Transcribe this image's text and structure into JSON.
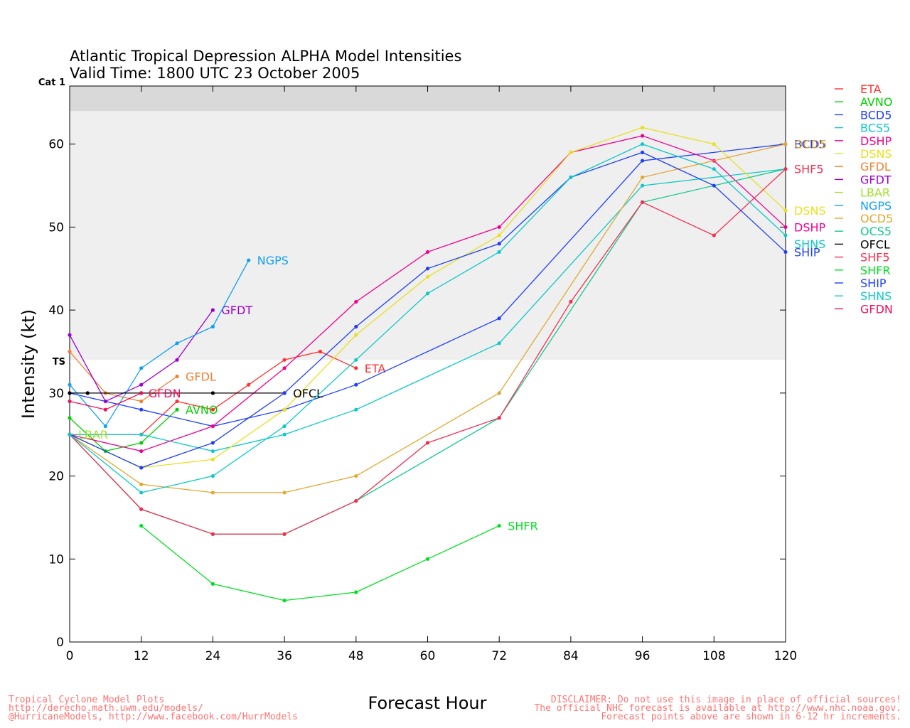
{
  "title": "Atlantic Tropical Depression ALPHA Model Intensities",
  "subtitle": "Valid Time: 1800 UTC 23 October 2005",
  "footer_left": [
    "Tropical Cyclone Model Plots",
    "http://derecho.math.uwm.edu/models/",
    "@HurricaneModels, http://www.facebook.com/HurrModels"
  ],
  "footer_right": [
    "DISCLAIMER: Do not use this image in place of official sources!",
    "The official NHC forecast is available at http://www.nhc.noaa.gov.",
    "Forecast points above are shown in 6-12 hr increments."
  ],
  "chart_data": {
    "type": "line",
    "xlabel": "Forecast Hour",
    "ylabel": "Intensity (kt)",
    "xlim": [
      0,
      120
    ],
    "ylim": [
      0,
      67
    ],
    "xticks": [
      0,
      12,
      24,
      36,
      48,
      60,
      72,
      84,
      96,
      108,
      120
    ],
    "yticks": [
      0,
      10,
      20,
      30,
      40,
      50,
      60
    ],
    "bands": [
      {
        "name": "TS",
        "from": 34,
        "to": 64,
        "color": "#efefef"
      },
      {
        "name": "Cat 1",
        "from": 64,
        "to": 67,
        "color": "#d9d9d9"
      }
    ],
    "series": [
      {
        "name": "ETA",
        "color": "#ff3030",
        "x": [
          0,
          12,
          18,
          24,
          30,
          36,
          42,
          48
        ],
        "y": [
          25,
          25,
          29,
          28,
          31,
          34,
          35,
          33
        ],
        "label": "ETA"
      },
      {
        "name": "AVNO",
        "color": "#00d000",
        "x": [
          0,
          6,
          12,
          18
        ],
        "y": [
          27,
          23,
          24,
          28
        ],
        "label": "AVNO"
      },
      {
        "name": "BCD5",
        "color": "#2040ff",
        "x": [
          0,
          12,
          24,
          36,
          48,
          72,
          96,
          120
        ],
        "y": [
          30,
          28,
          26,
          28,
          31,
          39,
          58,
          60
        ],
        "label": "BCD5"
      },
      {
        "name": "BCS5",
        "color": "#10c8c8",
        "x": [
          0,
          12,
          24,
          36,
          48,
          72,
          96,
          120
        ],
        "y": [
          25,
          25,
          23,
          25,
          28,
          36,
          55,
          57
        ],
        "label": "BCS5"
      },
      {
        "name": "DSHP",
        "color": "#f00090",
        "x": [
          0,
          12,
          24,
          36,
          48,
          60,
          72,
          84,
          96,
          108,
          120
        ],
        "y": [
          25,
          23,
          26,
          33,
          41,
          47,
          50,
          59,
          61,
          58,
          50
        ],
        "label": "DSHP"
      },
      {
        "name": "DSNS",
        "color": "#e8e020",
        "x": [
          0,
          12,
          24,
          36,
          48,
          60,
          72,
          84,
          96,
          108,
          120
        ],
        "y": [
          25,
          21,
          22,
          28,
          37,
          44,
          49,
          59,
          62,
          60,
          52
        ],
        "label": "DSNS"
      },
      {
        "name": "GFDL",
        "color": "#f08030",
        "x": [
          0,
          6,
          12,
          18
        ],
        "y": [
          35,
          30,
          29,
          32
        ],
        "label": "GFDL"
      },
      {
        "name": "GFDT",
        "color": "#a000d0",
        "x": [
          0,
          6,
          12,
          18,
          24
        ],
        "y": [
          37,
          29,
          31,
          34,
          40
        ],
        "label": "GFDT"
      },
      {
        "name": "LBAR",
        "color": "#a0e030",
        "x": [
          0
        ],
        "y": [
          25
        ],
        "label": "LBAR"
      },
      {
        "name": "NGPS",
        "color": "#10a0f0",
        "x": [
          0,
          6,
          12,
          18,
          24,
          30
        ],
        "y": [
          31,
          26,
          33,
          36,
          38,
          46
        ],
        "label": "NGPS"
      },
      {
        "name": "OCD5",
        "color": "#e0a830",
        "x": [
          0,
          12,
          24,
          36,
          48,
          72,
          96,
          120
        ],
        "y": [
          25,
          19,
          18,
          18,
          20,
          30,
          56,
          60
        ],
        "label": "OCD5"
      },
      {
        "name": "OCS5",
        "color": "#10c890",
        "x": [
          0,
          12,
          24,
          36,
          48,
          72,
          96,
          120
        ],
        "y": [
          25,
          16,
          13,
          13,
          17,
          27,
          53,
          57
        ],
        "label": "OCS5"
      },
      {
        "name": "OFCL",
        "color": "#000000",
        "x": [
          0,
          3,
          12,
          24,
          36
        ],
        "y": [
          30,
          30,
          30,
          30,
          30
        ],
        "label": "OFCL"
      },
      {
        "name": "SHF5",
        "color": "#f03050",
        "x": [
          0,
          12,
          24,
          36,
          48,
          60,
          72,
          84,
          96,
          108,
          120
        ],
        "y": [
          25,
          16,
          13,
          13,
          17,
          24,
          27,
          41,
          53,
          49,
          57
        ],
        "label": "SHF5"
      },
      {
        "name": "SHFR",
        "color": "#00e020",
        "x": [
          12,
          24,
          36,
          48,
          60,
          72
        ],
        "y": [
          14,
          7,
          5,
          6,
          10,
          14
        ],
        "label": "SHFR"
      },
      {
        "name": "SHIP",
        "color": "#2040f0",
        "x": [
          0,
          12,
          24,
          36,
          48,
          60,
          72,
          84,
          96,
          108,
          120
        ],
        "y": [
          25,
          21,
          24,
          30,
          38,
          45,
          48,
          56,
          59,
          55,
          47
        ],
        "label": "SHIP"
      },
      {
        "name": "SHNS",
        "color": "#10c8c8",
        "x": [
          0,
          12,
          24,
          36,
          48,
          60,
          72,
          84,
          96,
          108,
          120
        ],
        "y": [
          25,
          18,
          20,
          26,
          34,
          42,
          47,
          56,
          60,
          57,
          49
        ],
        "label": "SHNS"
      },
      {
        "name": "GFDN",
        "color": "#f01060",
        "x": [
          0,
          6,
          12
        ],
        "y": [
          29,
          28,
          30
        ],
        "label": "GFDN"
      }
    ]
  }
}
